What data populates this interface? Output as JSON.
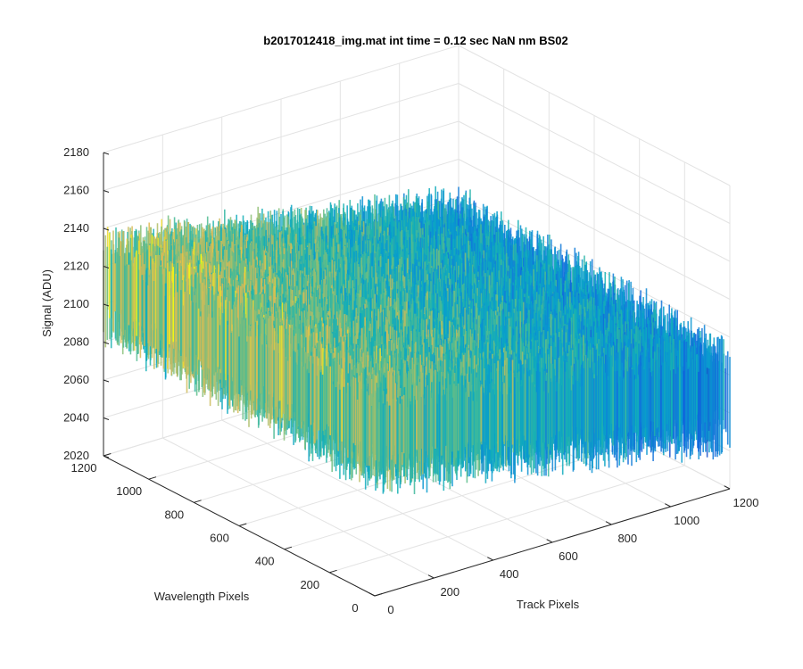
{
  "chart_data": {
    "type": "surface3d",
    "title": "b2017012418_img.mat int time = 0.12 sec  NaN nm BS02",
    "xlabel": "Track Pixels",
    "ylabel": "Wavelength Pixels",
    "zlabel": "Signal (ADU)",
    "xlim": [
      0,
      1200
    ],
    "ylim": [
      0,
      1200
    ],
    "zlim": [
      2020,
      2180
    ],
    "x_ticks": [
      "0",
      "200",
      "400",
      "600",
      "800",
      "1000",
      "1200"
    ],
    "y_ticks": [
      "0",
      "200",
      "400",
      "600",
      "800",
      "1000",
      "1200"
    ],
    "z_ticks": [
      "2020",
      "2040",
      "2060",
      "2080",
      "2100",
      "2120",
      "2140",
      "2160",
      "2180"
    ],
    "grid": true,
    "colormap": "parula",
    "surface_summary": {
      "mean_level_at_low_track": 2110,
      "mean_level_at_high_track": 2075,
      "noise_amplitude": 30,
      "min_signal": 2020,
      "max_signal": 2170
    }
  }
}
